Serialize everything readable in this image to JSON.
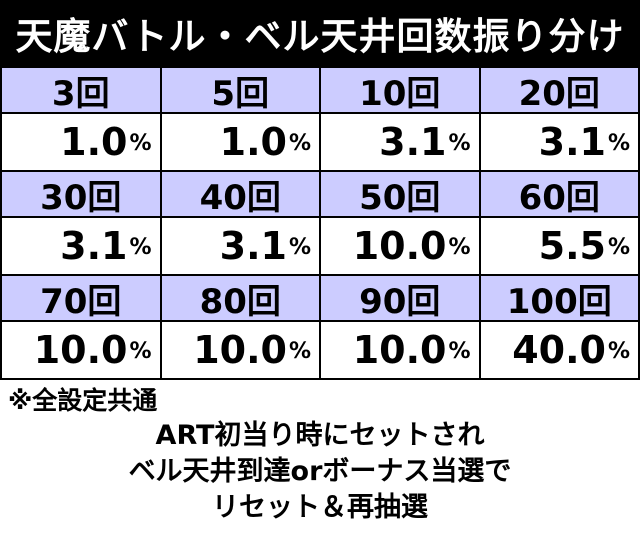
{
  "title": "天魔バトル・ベル天井回数振り分け",
  "table": {
    "rows": [
      {
        "headers": [
          "3回",
          "5回",
          "10回",
          "20回"
        ],
        "values": [
          "1.0",
          "1.0",
          "3.1",
          "3.1"
        ]
      },
      {
        "headers": [
          "30回",
          "40回",
          "50回",
          "60回"
        ],
        "values": [
          "3.1",
          "3.1",
          "10.0",
          "5.5"
        ]
      },
      {
        "headers": [
          "70回",
          "80回",
          "90回",
          "100回"
        ],
        "values": [
          "10.0",
          "10.0",
          "10.0",
          "40.0"
        ]
      }
    ],
    "unit": "%"
  },
  "note": "※全設定共通",
  "footer": {
    "lines": [
      "ART初当り時にセットされ",
      "ベル天井到達orボーナス当選で",
      "リセット＆再抽選"
    ]
  },
  "colors": {
    "title_bg": "#000000",
    "title_text": "#ffffff",
    "header_bg": "#ccccff",
    "value_bg": "#ffffff"
  }
}
